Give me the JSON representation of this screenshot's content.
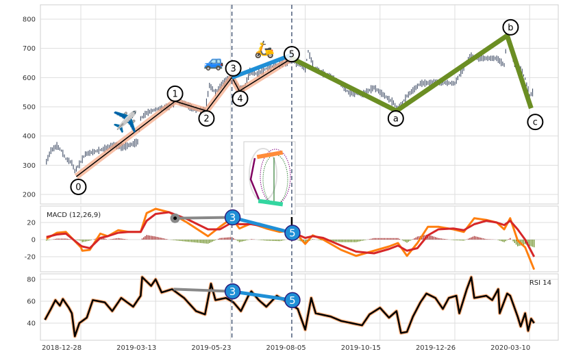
{
  "chart_data": [
    {
      "type": "line",
      "panel": "price",
      "description_of_x": "trading-day index relative to 2018-12-28",
      "ylim": [
        170,
        850
      ],
      "yticks": [
        200,
        300,
        400,
        500,
        600,
        700,
        800
      ],
      "grid": true,
      "series": [
        {
          "x": [
            -23,
            -20,
            -16,
            -13,
            -10,
            -6,
            -4,
            -1,
            3,
            8,
            15,
            22,
            28,
            35,
            38,
            40,
            44,
            50,
            56,
            60,
            64,
            70,
            76,
            83,
            86,
            90,
            95,
            99,
            102,
            105,
            109,
            113,
            118,
            124,
            131,
            137,
            141,
            150,
            152,
            156,
            163,
            172,
            179,
            188,
            196,
            202,
            209,
            212,
            218,
            227,
            239,
            250,
            260,
            269,
            278,
            283,
            285,
            290,
            294,
            297,
            300,
            302
          ],
          "y": [
            312,
            350,
            366,
            350,
            322,
            308,
            280,
            303,
            338,
            345,
            355,
            369,
            362,
            373,
            380,
            460,
            479,
            491,
            498,
            502,
            519,
            509,
            491,
            486,
            573,
            549,
            580,
            596,
            601,
            566,
            561,
            620,
            612,
            631,
            643,
            650,
            659,
            631,
            690,
            631,
            612,
            589,
            549,
            542,
            566,
            542,
            514,
            491,
            537,
            580,
            584,
            580,
            673,
            666,
            666,
            643,
            737,
            643,
            631,
            596,
            538,
            549
          ]
        }
      ],
      "waves": {
        "impulse": [
          {
            "label": "0",
            "x": -3,
            "y": 261
          },
          {
            "label": "1",
            "x": 63,
            "y": 519
          },
          {
            "label": "2",
            "x": 84,
            "y": 486
          },
          {
            "label": "3",
            "x": 101,
            "y": 601
          },
          {
            "label": "4",
            "x": 106,
            "y": 554
          },
          {
            "label": "5",
            "x": 141,
            "y": 666
          }
        ],
        "correction": [
          {
            "label": "5",
            "x": 141,
            "y": 666
          },
          {
            "label": "a",
            "x": 211,
            "y": 486
          },
          {
            "label": "b",
            "x": 285,
            "y": 744
          },
          {
            "label": "c",
            "x": 301,
            "y": 495
          }
        ],
        "trend_3_5": [
          {
            "x": 101,
            "y": 600
          },
          {
            "x": 141,
            "y": 678
          }
        ]
      },
      "vlines_x": [
        101,
        141
      ],
      "icons": [
        {
          "name": "airplane",
          "glyph": "✈️"
        },
        {
          "name": "car",
          "glyph": "🚙"
        },
        {
          "name": "scooter",
          "glyph": "🛵"
        }
      ],
      "inset": "roller-coaster"
    },
    {
      "type": "line",
      "panel": "macd",
      "label": "MACD (12,26,9)",
      "ylim": [
        -38,
        38
      ],
      "yticks": [
        -20,
        0,
        20
      ],
      "grid": true,
      "x": [
        -23,
        -16,
        -10,
        0,
        1,
        6,
        13,
        18,
        25,
        32,
        40,
        44,
        50,
        59,
        71,
        85,
        93,
        101,
        106,
        114,
        124,
        133,
        142,
        150,
        155,
        162,
        174,
        184,
        196,
        206,
        212,
        218,
        225,
        232,
        239,
        249,
        256,
        263,
        271,
        278,
        283,
        287,
        292,
        297,
        303
      ],
      "series": [
        {
          "color": "#ff7f0e",
          "values": [
            1,
            8,
            9,
            -9,
            -13,
            -12,
            7,
            4,
            11,
            9,
            9,
            31,
            36,
            32,
            20,
            4,
            15,
            25,
            13,
            19,
            13,
            9,
            11,
            -5,
            5,
            0,
            -12,
            -19,
            -13,
            -8,
            -4,
            -19,
            -4,
            15,
            15,
            12,
            9,
            25,
            23,
            20,
            12,
            25,
            -1,
            -9,
            -35
          ]
        },
        {
          "color": "#d62728",
          "values": [
            3,
            6,
            7,
            -7,
            -8,
            -10,
            2,
            4,
            8,
            9,
            9,
            22,
            30,
            32,
            24,
            12,
            12,
            20,
            18,
            18,
            15,
            12,
            8,
            2,
            4,
            2,
            -7,
            -14,
            -16,
            -11,
            -7,
            -13,
            -10,
            5,
            12,
            13,
            11,
            18,
            22,
            20,
            17,
            22,
            12,
            0,
            -20
          ]
        }
      ],
      "histogram_colors": {
        "positive": "#a52a2a",
        "negative": "#6b8e23"
      },
      "divergence": {
        "gray": [
          {
            "x": 63,
            "y": 25
          },
          {
            "x": 101,
            "y": 26
          }
        ],
        "blue": [
          {
            "x": 101,
            "y": 26
          },
          {
            "x": 141,
            "y": 8
          }
        ],
        "labels": [
          {
            "text": "3",
            "x": 101,
            "y": 26
          },
          {
            "text": "5",
            "x": 141,
            "y": 8
          }
        ]
      }
    },
    {
      "type": "line",
      "panel": "rsi",
      "label": "RSI 14",
      "ylim": [
        23,
        85
      ],
      "yticks": [
        40,
        60,
        80
      ],
      "grid": true,
      "x": [
        -24,
        -20,
        -17,
        -14,
        -12,
        -8,
        -6,
        -4,
        -1,
        4,
        8,
        16,
        21,
        27,
        35,
        40,
        41,
        47,
        50,
        54,
        61,
        69,
        77,
        83,
        87,
        90,
        97,
        102,
        107,
        112,
        114,
        119,
        124,
        131,
        138,
        145,
        150,
        154,
        157,
        167,
        174,
        181,
        188,
        193,
        200,
        206,
        211,
        214,
        218,
        222,
        227,
        231,
        237,
        242,
        246,
        251,
        253,
        258,
        261,
        263,
        271,
        275,
        279,
        280,
        285,
        287,
        292,
        294,
        297,
        299,
        301,
        303
      ],
      "values": [
        43,
        53,
        61,
        56,
        62,
        54,
        49,
        28,
        40,
        45,
        61,
        59,
        51,
        63,
        55,
        65,
        82,
        74,
        80,
        68,
        71,
        63,
        51,
        48,
        76,
        61,
        63,
        59,
        51,
        65,
        69,
        61,
        55,
        65,
        59,
        53,
        34,
        63,
        49,
        46,
        42,
        40,
        38,
        48,
        54,
        45,
        51,
        31,
        32,
        46,
        59,
        67,
        63,
        53,
        63,
        65,
        49,
        71,
        82,
        63,
        65,
        61,
        71,
        49,
        67,
        65,
        46,
        37,
        49,
        33,
        44,
        40
      ],
      "divergence": {
        "gray": [
          {
            "x": 62,
            "y": 71
          },
          {
            "x": 101,
            "y": 69
          }
        ],
        "blue": [
          {
            "x": 101,
            "y": 69
          },
          {
            "x": 141,
            "y": 61
          }
        ],
        "labels": [
          {
            "text": "3",
            "x": 101,
            "y": 69
          },
          {
            "text": "5",
            "x": 141,
            "y": 61
          }
        ]
      }
    }
  ],
  "xaxis": {
    "tick_x": [
      0,
      50,
      100,
      150,
      200,
      250,
      300
    ],
    "tick_labels": [
      "2018-12-28",
      "2019-03-13",
      "2019-05-23",
      "2019-08-05",
      "2019-10-15",
      "2019-12-26",
      "2020-03-10"
    ]
  },
  "colors": {
    "candles": "#3d4a63",
    "impulse_band": "#f4a582",
    "impulse_line": "#000000",
    "trend_blue": "#1f8fd6",
    "correction": "#6b8e23",
    "divergence_gray": "#888888",
    "marker_fill": "#1f8fd6",
    "rsi_glow": "#ffb380",
    "grid": "#dddddd"
  }
}
